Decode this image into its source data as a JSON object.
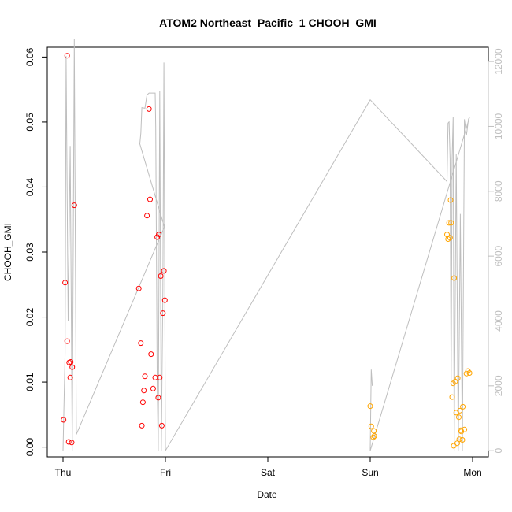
{
  "chart_data": {
    "type": "scatter",
    "title": "ATOM2 Northeast_Pacific_1 CHOOH_GMI",
    "xlabel": "Date",
    "ylabel": "CHOOH_GMI",
    "x_ticks": [
      "Thu",
      "Fri",
      "Sat",
      "Sun",
      "Mon"
    ],
    "xlim": [
      0,
      4
    ],
    "ylim": [
      -0.0015,
      0.0615
    ],
    "y_ticks": [
      0.0,
      0.01,
      0.02,
      0.03,
      0.04,
      0.05,
      0.06
    ],
    "y_tick_labels": [
      "0.00",
      "0.01",
      "0.02",
      "0.03",
      "0.04",
      "0.05",
      "0.06"
    ],
    "y2_ticks": [
      0,
      2000,
      4000,
      6000,
      8000,
      10000,
      12000
    ],
    "y2lim": [
      -190,
      12440
    ],
    "colors": {
      "red": "#ff0000",
      "orange": "#ffa500",
      "line": "#bebebe"
    },
    "series": [
      {
        "color": "red",
        "points": [
          [
            0.005,
            0.0042
          ],
          [
            0.02,
            0.0253
          ],
          [
            0.04,
            0.0602
          ],
          [
            0.04,
            0.0163
          ],
          [
            0.055,
            0.0008
          ],
          [
            0.06,
            0.013
          ],
          [
            0.07,
            0.0107
          ],
          [
            0.075,
            0.0131
          ],
          [
            0.085,
            0.0007
          ],
          [
            0.09,
            0.0123
          ],
          [
            0.11,
            0.0372
          ],
          [
            0.74,
            0.0244
          ],
          [
            0.76,
            0.016
          ],
          [
            0.77,
            0.0033
          ],
          [
            0.78,
            0.0069
          ],
          [
            0.79,
            0.0087
          ],
          [
            0.8,
            0.0109
          ],
          [
            0.82,
            0.0356
          ],
          [
            0.84,
            0.052
          ],
          [
            0.85,
            0.0381
          ],
          [
            0.86,
            0.0143
          ],
          [
            0.88,
            0.009
          ],
          [
            0.9,
            0.0107
          ],
          [
            0.92,
            0.0323
          ],
          [
            0.93,
            0.0076
          ],
          [
            0.935,
            0.0327
          ],
          [
            0.945,
            0.0107
          ],
          [
            0.955,
            0.0263
          ],
          [
            0.965,
            0.0033
          ],
          [
            0.975,
            0.0206
          ],
          [
            0.985,
            0.0271
          ],
          [
            0.995,
            0.0226
          ]
        ]
      },
      {
        "color": "orange",
        "points": [
          [
            3.0,
            0.0063
          ],
          [
            3.01,
            0.0032
          ],
          [
            3.03,
            0.0015
          ],
          [
            3.035,
            0.0025
          ],
          [
            3.04,
            0.0017
          ],
          [
            3.75,
            0.0327
          ],
          [
            3.76,
            0.032
          ],
          [
            3.77,
            0.0345
          ],
          [
            3.78,
            0.0322
          ],
          [
            3.785,
            0.038
          ],
          [
            3.79,
            0.0345
          ],
          [
            3.8,
            0.0077
          ],
          [
            3.81,
            0.0098
          ],
          [
            3.815,
            0.0002
          ],
          [
            3.82,
            0.026
          ],
          [
            3.83,
            0.0101
          ],
          [
            3.84,
            0.0053
          ],
          [
            3.85,
            0.0006
          ],
          [
            3.855,
            0.0106
          ],
          [
            3.865,
            0.0046
          ],
          [
            3.87,
            0.0012
          ],
          [
            3.875,
            0.0056
          ],
          [
            3.885,
            0.0026
          ],
          [
            3.89,
            0.0024
          ],
          [
            3.9,
            0.0011
          ],
          [
            3.905,
            0.0062
          ],
          [
            3.92,
            0.0027
          ],
          [
            3.94,
            0.0113
          ],
          [
            3.955,
            0.0117
          ],
          [
            3.97,
            0.0114
          ]
        ]
      }
    ],
    "line_series": {
      "axis": "right",
      "points": [
        [
          0.0,
          0.0
        ],
        [
          0.02,
          3000.0
        ],
        [
          0.03,
          12170.0
        ],
        [
          0.05,
          4000.0
        ],
        [
          0.07,
          9400.0
        ],
        [
          0.09,
          0.0
        ],
        [
          0.11,
          12690.0
        ],
        [
          0.13,
          500.0
        ],
        [
          0.99,
          6900.0
        ],
        [
          0.75,
          9460.0
        ],
        [
          0.76,
          9790.0
        ],
        [
          0.77,
          10580.0
        ],
        [
          0.8,
          10560.0
        ],
        [
          0.82,
          10970.0
        ],
        [
          0.84,
          11030.0
        ],
        [
          0.9,
          11030.0
        ],
        [
          0.905,
          10000.0
        ],
        [
          0.92,
          2000.0
        ],
        [
          0.93,
          0.0
        ],
        [
          0.945,
          11080.0
        ],
        [
          0.96,
          0.0
        ],
        [
          0.975,
          5000.0
        ],
        [
          0.985,
          11970.0
        ],
        [
          1.0,
          0.0
        ],
        [
          3.0,
          10820.0
        ],
        [
          3.75,
          8300.0
        ],
        [
          3.76,
          10100.0
        ],
        [
          3.77,
          10140.0
        ],
        [
          3.78,
          9000.0
        ],
        [
          3.79,
          2000.0
        ],
        [
          3.8,
          9000.0
        ],
        [
          3.81,
          10300.0
        ],
        [
          3.82,
          0.0
        ],
        [
          3.84,
          9150.0
        ],
        [
          3.86,
          0.0
        ],
        [
          3.88,
          7300.0
        ],
        [
          3.9,
          0.0
        ],
        [
          3.92,
          10220.0
        ],
        [
          3.94,
          9720.0
        ],
        [
          3.96,
          10230.0
        ],
        [
          3.97,
          10280.0
        ],
        [
          3.0,
          0.0
        ],
        [
          3.01,
          2500.0
        ],
        [
          3.02,
          2000.0
        ]
      ]
    }
  }
}
